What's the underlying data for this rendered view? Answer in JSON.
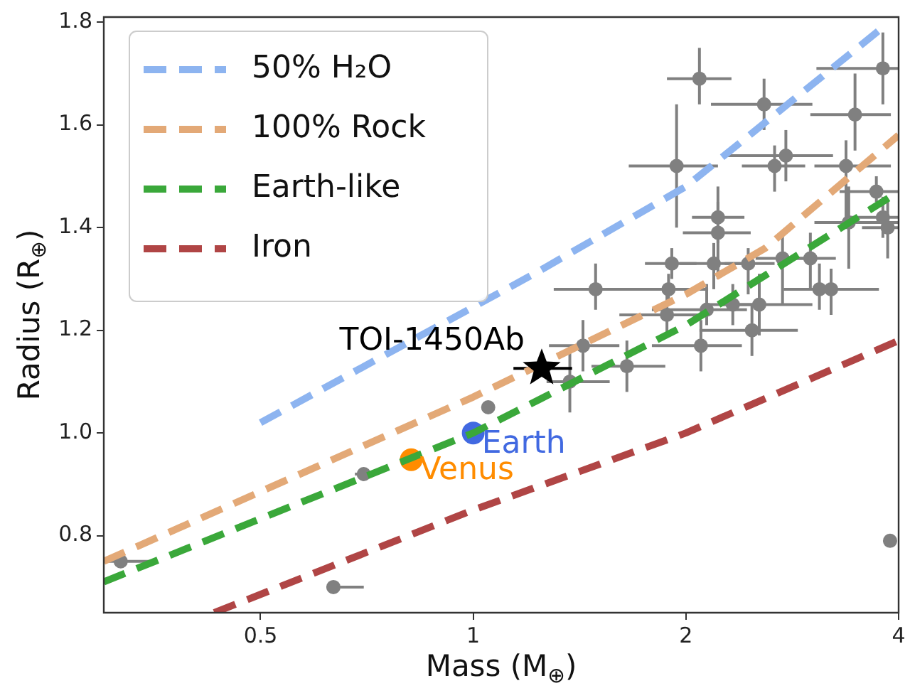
{
  "chart_data": {
    "type": "scatter",
    "xlabel": "Mass (M$_{⊕}$)",
    "ylabel": "Radius (R$_{⊕}$)",
    "log": "x",
    "xlim": [
      0.3,
      4
    ],
    "xticks": [
      0.5,
      1,
      2,
      4
    ],
    "ylim": [
      0.65,
      1.81
    ],
    "yticks": [
      {
        "value": 0.8,
        "label": "0.8"
      },
      {
        "value": 1,
        "label": "1.0"
      },
      {
        "value": 1.2,
        "label": "1.2"
      },
      {
        "value": 1.4,
        "label": "1.4"
      },
      {
        "value": 1.6,
        "label": "1.6"
      },
      {
        "value": 1.8,
        "label": "1.8"
      }
    ],
    "legend": "top left",
    "grid": false,
    "series": [
      {
        "name": "50% H₂O",
        "type": "line",
        "color": "#8db4f0",
        "line_style": "dashed",
        "marker": "none",
        "x": [
          0.5,
          1.22,
          2,
          3.8
        ],
        "values": [
          1.02,
          1.31,
          1.48,
          1.79
        ]
      },
      {
        "name": "100% Rock",
        "type": "line",
        "color": "#e3a977",
        "line_style": "dashed",
        "marker": "none",
        "x": [
          0.3,
          1,
          2,
          2.59,
          4
        ],
        "values": [
          0.75,
          1.07,
          1.27,
          1.36,
          1.58
        ]
      },
      {
        "name": "Earth-like",
        "type": "line",
        "color": "#3aa83a",
        "line_style": "dashed",
        "marker": "none",
        "x": [
          0.3,
          1,
          2,
          4
        ],
        "values": [
          0.71,
          1,
          1.21,
          1.47
        ]
      },
      {
        "name": "Iron",
        "type": "line",
        "color": "#b04545",
        "line_style": "dashed",
        "marker": "none",
        "x": [
          0.43,
          1,
          2,
          4
        ],
        "values": [
          0.65,
          0.85,
          1.0,
          1.18
        ]
      },
      {
        "color": "#808080",
        "marker": "circle",
        "x": [
          2.09,
          2.58,
          3.8,
          3.47,
          1.94,
          2.77,
          2.67,
          3.37,
          2.22,
          2.22,
          1.91,
          2.19,
          2.45,
          2.74,
          3.0,
          3.4,
          3.72,
          3.8,
          3.86,
          1.49,
          1.89,
          3.09,
          3.21,
          1.88,
          2.14,
          2.33,
          2.54,
          2.48,
          2.1,
          1.65,
          1.43,
          1.37,
          3.89,
          0.317,
          0.634,
          0.7,
          1.05
        ],
        "values": [
          1.69,
          1.64,
          1.71,
          1.62,
          1.52,
          1.54,
          1.52,
          1.52,
          1.42,
          1.39,
          1.33,
          1.33,
          1.33,
          1.34,
          1.34,
          1.41,
          1.47,
          1.42,
          1.4,
          1.28,
          1.28,
          1.28,
          1.28,
          1.23,
          1.24,
          1.25,
          1.25,
          1.2,
          1.17,
          1.13,
          1.17,
          1.1,
          0.79,
          0.75,
          0.7,
          0.92,
          1.05
        ],
        "xerrors": [
          [
            1.88,
            2.32
          ],
          [
            2.17,
            3.02
          ],
          [
            3.06,
            4
          ],
          [
            3,
            3.9
          ],
          [
            1.66,
            2.22
          ],
          [
            2.29,
            3.23
          ],
          [
            2.4,
            2.95
          ],
          [
            3.04,
            3.9
          ],
          [
            2.04,
            2.42
          ],
          [
            1.98,
            2.47
          ],
          [
            1.75,
            2.07
          ],
          [
            1.96,
            2.44
          ],
          [
            2.27,
            2.67
          ],
          [
            2.51,
            2.97
          ],
          [
            2.75,
            3.26
          ],
          [
            3.04,
            4
          ],
          [
            3.3,
            4
          ],
          [
            3.4,
            4
          ],
          [
            3.55,
            4
          ],
          [
            1.3,
            1.69
          ],
          [
            1.61,
            2.15
          ],
          [
            2.75,
            3.75
          ],
          [
            2.95,
            3.75
          ],
          [
            1.61,
            2.15
          ],
          [
            1.79,
            2.44
          ],
          [
            2.12,
            2.57
          ],
          [
            2.24,
            3.02
          ],
          [
            2.09,
            2.88
          ],
          [
            1.79,
            2.4
          ],
          [
            1.47,
            1.87
          ],
          [
            1.28,
            1.61
          ],
          [
            1.27,
            1.56
          ],
          null,
          [
            0.3,
            0.35
          ],
          [
            0.62,
            0.7
          ],
          [
            0.68,
            0.73
          ],
          null
        ],
        "errors": [
          [
            1.64,
            1.75
          ],
          [
            1.59,
            1.69
          ],
          [
            1.64,
            1.78
          ],
          [
            1.55,
            1.7
          ],
          [
            1.4,
            1.64
          ],
          [
            1.49,
            1.59
          ],
          [
            1.47,
            1.56
          ],
          [
            1.4,
            1.57
          ],
          [
            1.37,
            1.48
          ],
          [
            1.3,
            1.45
          ],
          [
            1.3,
            1.36
          ],
          [
            1.28,
            1.37
          ],
          [
            1.27,
            1.36
          ],
          [
            1.25,
            1.39
          ],
          [
            1.28,
            1.39
          ],
          [
            1.32,
            1.48
          ],
          [
            1.45,
            1.5
          ],
          [
            1.38,
            1.46
          ],
          [
            1.34,
            1.45
          ],
          [
            1.24,
            1.33
          ],
          [
            1.25,
            1.31
          ],
          [
            1.24,
            1.33
          ],
          [
            1.23,
            1.32
          ],
          [
            1.19,
            1.28
          ],
          [
            1.21,
            1.29
          ],
          [
            1.21,
            1.29
          ],
          [
            1.19,
            1.31
          ],
          [
            1.15,
            1.25
          ],
          [
            1.12,
            1.22
          ],
          [
            1.08,
            1.18
          ],
          [
            1.12,
            1.22
          ],
          [
            1.04,
            1.17
          ],
          null,
          null,
          null,
          null,
          null
        ]
      },
      {
        "name": "Earth",
        "color": "#4169e1",
        "marker": "circle",
        "x": [
          1
        ],
        "values": [
          1
        ]
      },
      {
        "name": "Venus",
        "color": "#ff8c00",
        "marker": "circle",
        "x": [
          0.817
        ],
        "values": [
          0.948
        ]
      },
      {
        "name": "TOI-1450Ab",
        "color": "#000000",
        "marker": "star",
        "x": [
          1.25
        ],
        "values": [
          1.126
        ],
        "xerrors": [
          [
            1.14,
            1.38
          ]
        ],
        "errors": [
          [
            1.11,
            1.14
          ]
        ]
      }
    ]
  }
}
